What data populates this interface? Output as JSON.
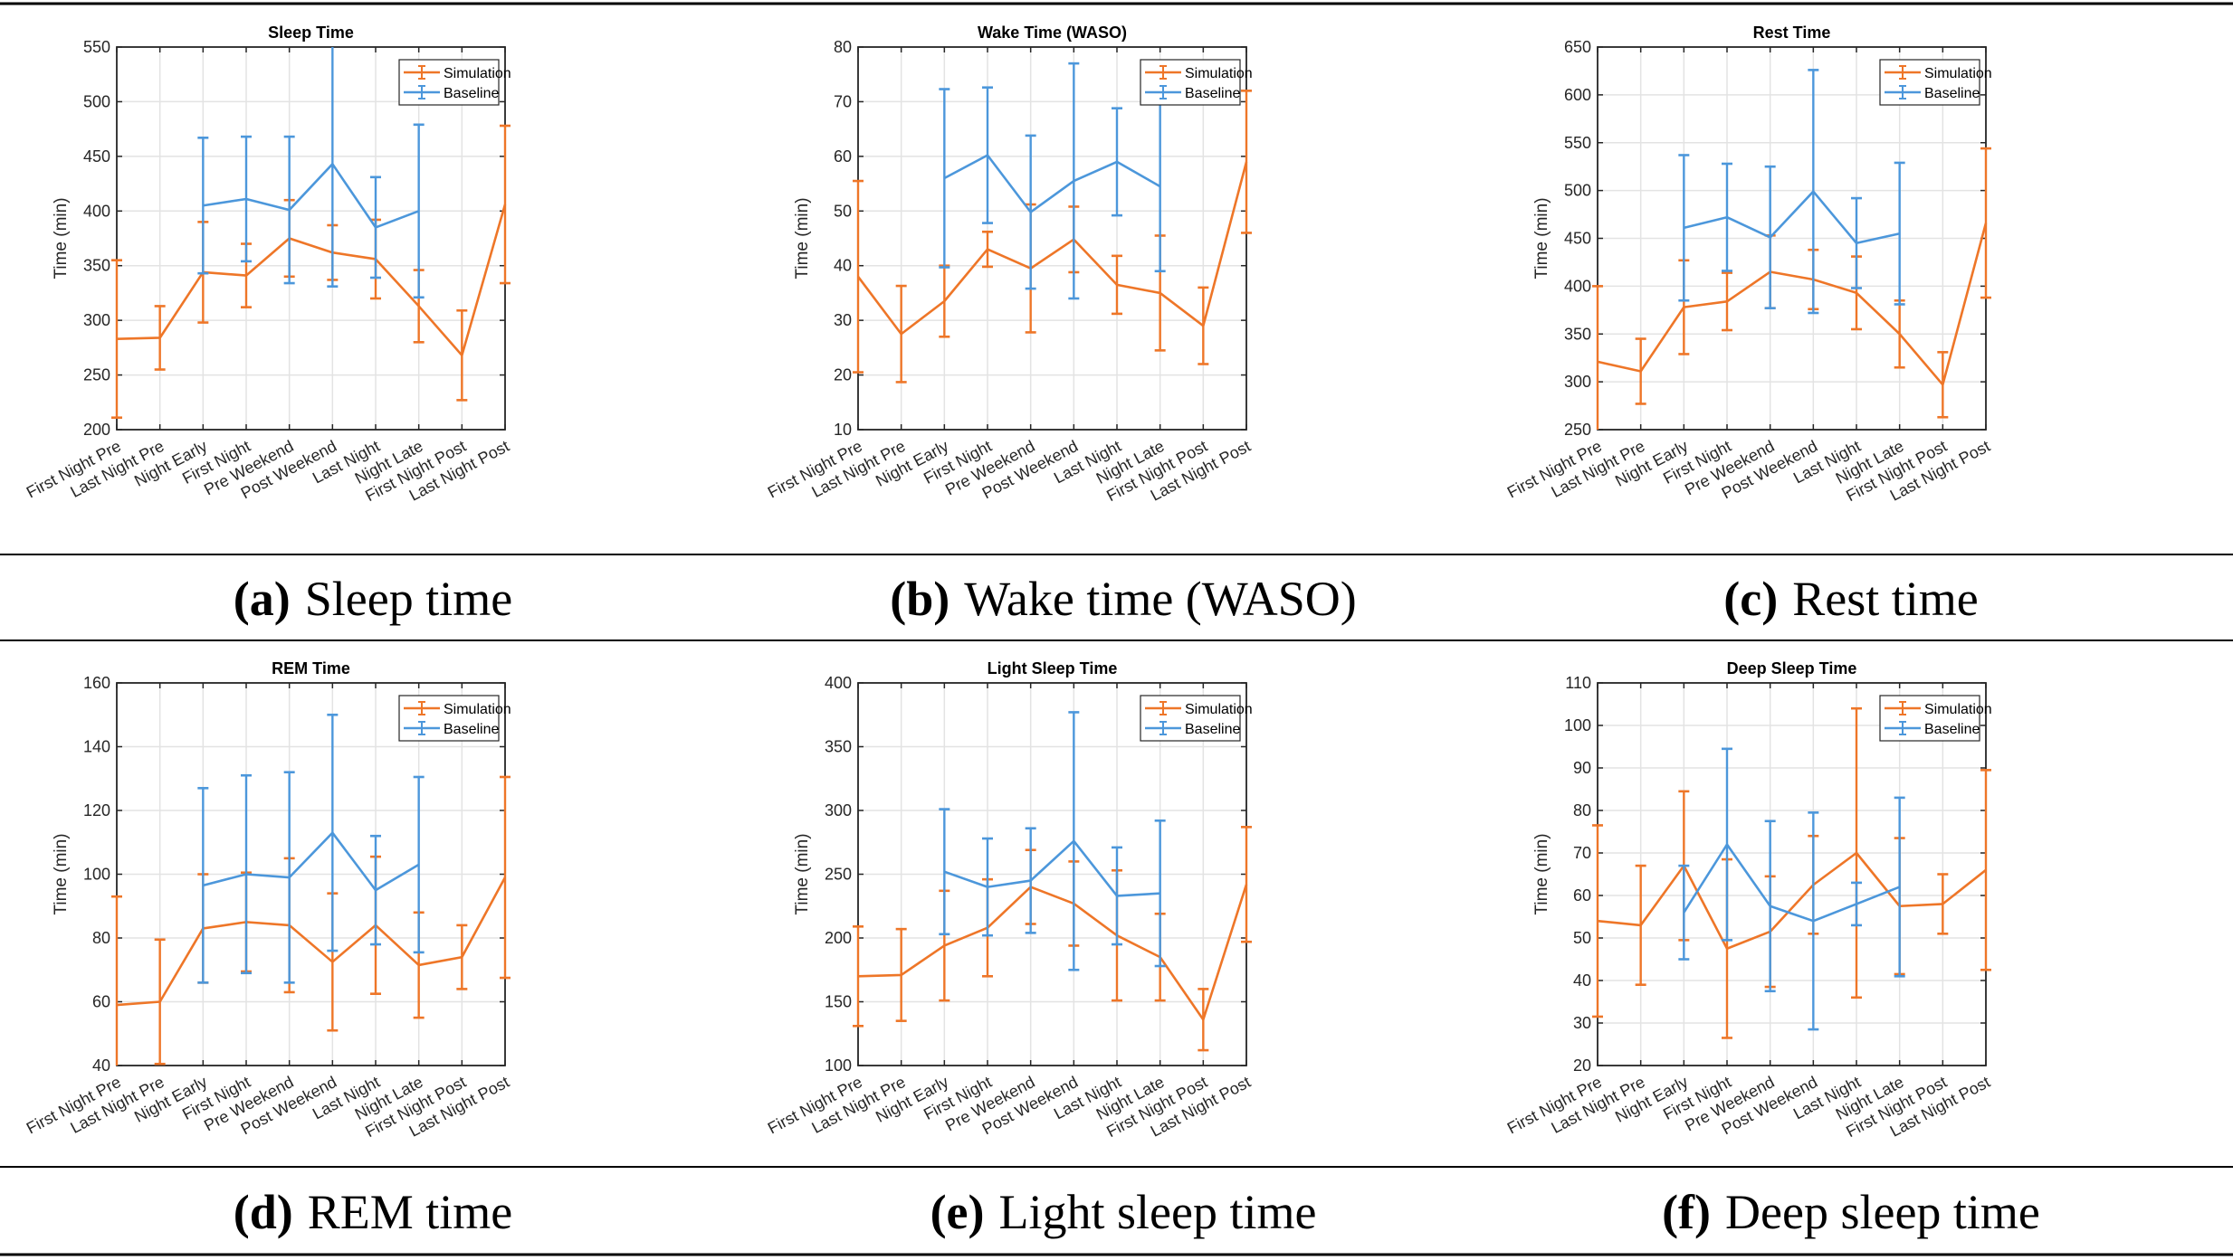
{
  "colors": {
    "simulation": "#EE7628",
    "baseline": "#4C97DB"
  },
  "chart_data": [
    {
      "type": "line",
      "title": "Sleep Time",
      "ylabel": "Time (min)",
      "ylim": [
        200,
        550
      ],
      "yticks": [
        200,
        250,
        300,
        350,
        400,
        450,
        500,
        550
      ],
      "grid": true,
      "legend": "top-right",
      "categories": [
        "First Night Pre",
        "Last Night Pre",
        "Night Early",
        "First Night",
        "Pre Weekend",
        "Post Weekend",
        "Last Night",
        "Night Late",
        "First Night Post",
        "Last Night Post"
      ],
      "series": [
        {
          "name": "Simulation",
          "values": [
            283,
            284,
            344,
            341,
            375,
            362,
            356,
            313,
            268,
            406
          ],
          "errors": [
            72,
            29,
            46,
            29,
            35,
            25,
            36,
            33,
            41,
            72
          ]
        },
        {
          "name": "Baseline",
          "values": [
            null,
            null,
            405,
            411,
            401,
            443,
            385,
            400,
            null,
            null
          ],
          "errors": [
            null,
            null,
            62,
            57,
            67,
            112,
            46,
            79,
            null,
            null
          ]
        }
      ],
      "caption": {
        "label": "(a)",
        "text": "Sleep time"
      }
    },
    {
      "type": "line",
      "title": "Wake Time (WASO)",
      "ylabel": "Time (min)",
      "ylim": [
        10,
        80
      ],
      "yticks": [
        10,
        20,
        30,
        40,
        50,
        60,
        70,
        80
      ],
      "grid": true,
      "legend": "top-right",
      "categories": [
        "First Night Pre",
        "Last Night Pre",
        "Night Early",
        "First Night",
        "Pre Weekend",
        "Post Weekend",
        "Last Night",
        "Night Late",
        "First Night Post",
        "Last Night Post"
      ],
      "series": [
        {
          "name": "Simulation",
          "values": [
            38,
            27.5,
            33.5,
            43,
            39.5,
            44.8,
            36.5,
            35,
            29,
            59
          ],
          "errors": [
            17.5,
            8.8,
            6.5,
            3.2,
            11.7,
            6,
            5.3,
            10.5,
            7,
            13
          ]
        },
        {
          "name": "Baseline",
          "values": [
            null,
            null,
            56,
            60.2,
            49.8,
            55.5,
            59,
            54.5,
            null,
            null
          ],
          "errors": [
            null,
            null,
            16.3,
            12.4,
            14,
            21.5,
            9.8,
            15.5,
            null,
            null
          ]
        }
      ],
      "caption": {
        "label": "(b)",
        "text": "Wake time (WASO)"
      }
    },
    {
      "type": "line",
      "title": "Rest Time",
      "ylabel": "Time (min)",
      "ylim": [
        250,
        650
      ],
      "yticks": [
        250,
        300,
        350,
        400,
        450,
        500,
        550,
        600,
        650
      ],
      "grid": true,
      "legend": "top-right",
      "categories": [
        "First Night Pre",
        "Last Night Pre",
        "Night Early",
        "First Night",
        "Pre Weekend",
        "Post Weekend",
        "Last Night",
        "Night Late",
        "First Night Post",
        "Last Night Post"
      ],
      "series": [
        {
          "name": "Simulation",
          "values": [
            321,
            311,
            378,
            384,
            415,
            407,
            393,
            350,
            297,
            466
          ],
          "errors": [
            79,
            34,
            49,
            30,
            38,
            31,
            38,
            35,
            34,
            78
          ]
        },
        {
          "name": "Baseline",
          "values": [
            null,
            null,
            461,
            472,
            451,
            499,
            445,
            455,
            null,
            null
          ],
          "errors": [
            null,
            null,
            76,
            56,
            74,
            127,
            47,
            74,
            null,
            null
          ]
        }
      ],
      "caption": {
        "label": "(c)",
        "text": "Rest time"
      }
    },
    {
      "type": "line",
      "title": "REM Time",
      "ylabel": "Time (min)",
      "ylim": [
        40,
        160
      ],
      "yticks": [
        40,
        60,
        80,
        100,
        120,
        140,
        160
      ],
      "grid": true,
      "legend": "top-right",
      "categories": [
        "First Night Pre",
        "Last Night Pre",
        "Night Early",
        "First Night",
        "Pre Weekend",
        "Post Weekend",
        "Last Night",
        "Night Late",
        "First Night Post",
        "Last Night Post"
      ],
      "series": [
        {
          "name": "Simulation",
          "values": [
            59,
            60,
            83,
            85,
            84,
            72.5,
            84,
            71.5,
            74,
            99
          ],
          "errors": [
            34,
            19.5,
            17,
            15.5,
            21,
            21.5,
            21.5,
            16.5,
            10,
            31.5
          ]
        },
        {
          "name": "Baseline",
          "values": [
            null,
            null,
            96.5,
            100,
            99,
            113,
            95,
            103,
            null,
            null
          ],
          "errors": [
            null,
            null,
            30.5,
            31,
            33,
            37,
            17,
            27.5,
            null,
            null
          ]
        }
      ],
      "caption": {
        "label": "(d)",
        "text": "REM time"
      }
    },
    {
      "type": "line",
      "title": "Light Sleep Time",
      "ylabel": "Time (min)",
      "ylim": [
        100,
        400
      ],
      "yticks": [
        100,
        150,
        200,
        250,
        300,
        350,
        400
      ],
      "grid": true,
      "legend": "top-right",
      "categories": [
        "First Night Pre",
        "Last Night Pre",
        "Night Early",
        "First Night",
        "Pre Weekend",
        "Post Weekend",
        "Last Night",
        "Night Late",
        "First Night Post",
        "Last Night Post"
      ],
      "series": [
        {
          "name": "Simulation",
          "values": [
            170,
            171,
            194,
            208,
            240,
            227,
            202,
            185,
            136,
            242
          ],
          "errors": [
            39,
            36,
            43,
            38,
            29,
            33,
            51,
            34,
            24,
            45
          ]
        },
        {
          "name": "Baseline",
          "values": [
            null,
            null,
            252,
            240,
            245,
            276,
            233,
            235,
            null,
            null
          ],
          "errors": [
            null,
            null,
            49,
            38,
            41,
            101,
            38,
            57,
            null,
            null
          ]
        }
      ],
      "caption": {
        "label": "(e)",
        "text": "Light sleep time"
      }
    },
    {
      "type": "line",
      "title": "Deep Sleep Time",
      "ylabel": "Time (min)",
      "ylim": [
        20,
        110
      ],
      "yticks": [
        20,
        30,
        40,
        50,
        60,
        70,
        80,
        90,
        100,
        110
      ],
      "grid": true,
      "legend": "top-right",
      "categories": [
        "First Night Pre",
        "Last Night Pre",
        "Night Early",
        "First Night",
        "Pre Weekend",
        "Post Weekend",
        "Last Night",
        "Night Late",
        "First Night Post",
        "Last Night Post"
      ],
      "series": [
        {
          "name": "Simulation",
          "values": [
            54,
            53,
            67,
            47.5,
            51.5,
            62.5,
            70,
            57.5,
            58,
            66
          ],
          "errors": [
            22.5,
            14,
            17.5,
            21,
            13,
            11.5,
            34,
            16,
            7,
            23.5
          ]
        },
        {
          "name": "Baseline",
          "values": [
            null,
            null,
            56,
            72,
            57.5,
            54,
            58,
            62,
            null,
            null
          ],
          "errors": [
            null,
            null,
            11,
            22.5,
            20,
            25.5,
            5,
            21,
            null,
            null
          ]
        }
      ],
      "caption": {
        "label": "(f)",
        "text": "Deep sleep time"
      }
    }
  ]
}
